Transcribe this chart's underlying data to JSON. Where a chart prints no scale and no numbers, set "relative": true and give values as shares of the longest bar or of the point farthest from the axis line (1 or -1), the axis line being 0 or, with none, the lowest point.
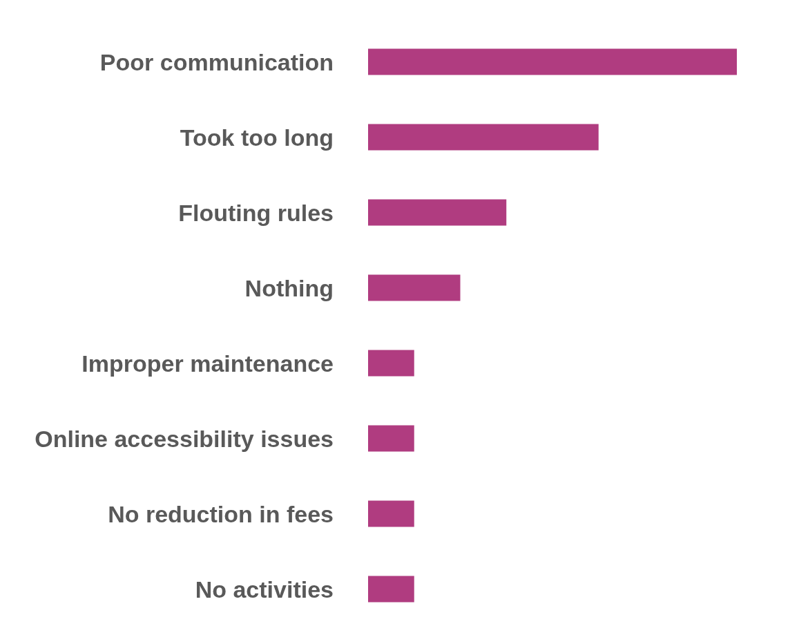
{
  "chart_data": {
    "type": "bar",
    "orientation": "horizontal",
    "relative": true,
    "categories": [
      "Poor communication",
      "Took too long",
      "Flouting rules",
      "Nothing",
      "Improper maintenance",
      "Online accessibility issues",
      "No reduction in fees",
      "No activities"
    ],
    "values": [
      1,
      0.625,
      0.375,
      0.25,
      0.125,
      0.125,
      0.125,
      0.125
    ],
    "color": "#b03c80"
  }
}
